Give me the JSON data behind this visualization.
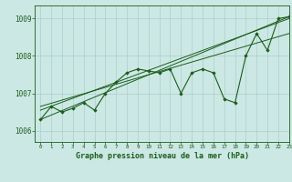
{
  "title": "Graphe pression niveau de la mer (hPa)",
  "xlim": [
    -0.5,
    23
  ],
  "ylim": [
    1005.7,
    1009.35
  ],
  "yticks": [
    1006,
    1007,
    1008,
    1009
  ],
  "xticks": [
    0,
    1,
    2,
    3,
    4,
    5,
    6,
    7,
    8,
    9,
    10,
    11,
    12,
    13,
    14,
    15,
    16,
    17,
    18,
    19,
    20,
    21,
    22,
    23
  ],
  "bg_color": "#cce8e4",
  "grid_color": "#aacfcc",
  "line_color": "#1a5c1a",
  "marker_color": "#1a5c1a",
  "line1_x": [
    0,
    1,
    2,
    3,
    4,
    5,
    6,
    7,
    8,
    9,
    10,
    11,
    12,
    13,
    14,
    15,
    16,
    17,
    18,
    19,
    20,
    21,
    22,
    23
  ],
  "line1_y": [
    1006.3,
    1006.65,
    1006.5,
    1006.6,
    1006.75,
    1006.55,
    1007.0,
    1007.3,
    1007.55,
    1007.65,
    1007.6,
    1007.55,
    1007.65,
    1007.0,
    1007.55,
    1007.65,
    1007.55,
    1006.85,
    1006.75,
    1008.0,
    1008.6,
    1008.15,
    1009.0,
    1009.05
  ],
  "line2_x": [
    0,
    23
  ],
  "line2_y": [
    1006.3,
    1009.05
  ],
  "line3_x": [
    0,
    23
  ],
  "line3_y": [
    1006.55,
    1009.0
  ],
  "line4_x": [
    0,
    23
  ],
  "line4_y": [
    1006.65,
    1008.6
  ],
  "xlabel_fontsize": 6.0,
  "ytick_fontsize": 5.5,
  "xtick_fontsize": 4.2
}
